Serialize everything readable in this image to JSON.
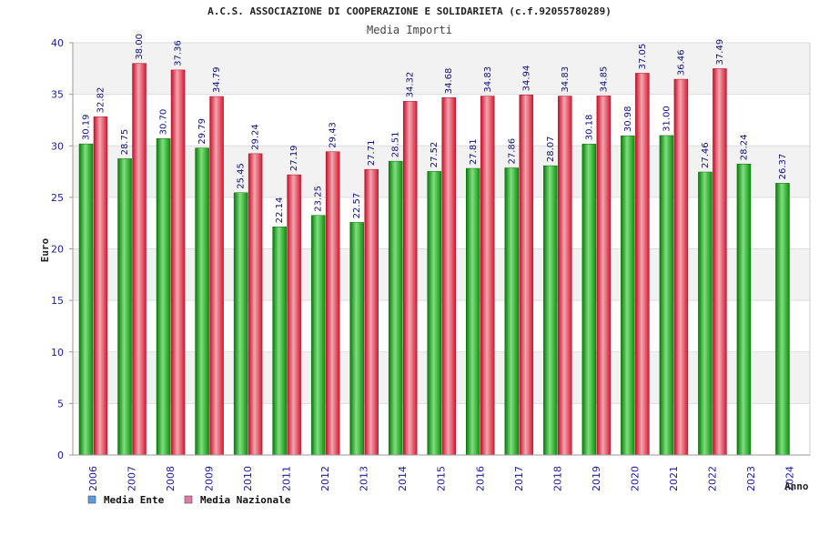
{
  "chart_data": {
    "type": "bar",
    "title": "A.C.S. ASSOCIAZIONE DI COOPERAZIONE E SOLIDARIETA (c.f.92055780289)",
    "subtitle": "Media Importi",
    "xlabel": "Anno",
    "ylabel": "Euro",
    "ylim": [
      0,
      40
    ],
    "yticks": [
      0,
      5,
      10,
      15,
      20,
      25,
      30,
      35,
      40
    ],
    "categories": [
      "2006",
      "2007",
      "2008",
      "2009",
      "2010",
      "2011",
      "2012",
      "2013",
      "2014",
      "2015",
      "2016",
      "2017",
      "2018",
      "2019",
      "2020",
      "2021",
      "2022",
      "2023",
      "2024"
    ],
    "series": [
      {
        "name": "Media Ente",
        "color": "#1fa81f",
        "legend_color": "#5b9be0",
        "values": [
          30.19,
          28.75,
          30.7,
          29.79,
          25.45,
          22.14,
          23.25,
          22.57,
          28.51,
          27.52,
          27.81,
          27.86,
          28.07,
          30.18,
          30.98,
          31.0,
          27.46,
          28.24,
          26.37
        ],
        "labels": [
          "30.19",
          "28.75",
          "30.70",
          "29.79",
          "25.45",
          "22.14",
          "23.25",
          "22.57",
          "28.51",
          "27.52",
          "27.81",
          "27.86",
          "28.07",
          "30.18",
          "30.98",
          "31.00",
          "27.46",
          "28.24",
          "26.37"
        ]
      },
      {
        "name": "Media Nazionale",
        "color": "#e8273b",
        "legend_color": "#e07aa8",
        "values": [
          32.82,
          38.0,
          37.36,
          34.79,
          29.24,
          27.19,
          29.43,
          27.71,
          34.32,
          34.68,
          34.83,
          34.94,
          34.83,
          34.85,
          37.05,
          36.46,
          37.49,
          null,
          null
        ],
        "labels": [
          "32.82",
          "38.00",
          "37.36",
          "34.79",
          "29.24",
          "27.19",
          "29.43",
          "27.71",
          "34.32",
          "34.68",
          "34.83",
          "34.94",
          "34.83",
          "34.85",
          "37.05",
          "36.46",
          "37.49",
          null,
          null
        ]
      }
    ],
    "legend": [
      "Media Ente",
      "Media Nazionale"
    ],
    "legend_position": "bottom-left",
    "grid": true
  }
}
